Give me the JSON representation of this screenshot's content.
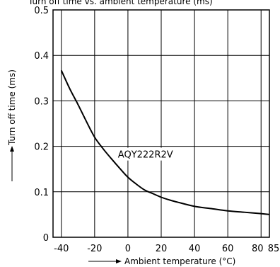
{
  "chart_data": {
    "type": "line",
    "title": "",
    "top_caption": "Turn off time vs. ambient temperature (ms)",
    "xlabel": "Ambient temperature (°C)",
    "ylabel": "Turn off time (ms)",
    "xlim": [
      -45,
      85
    ],
    "ylim": [
      0,
      0.5
    ],
    "x_ticks": [
      "-40",
      "-20",
      "0",
      "20",
      "40",
      "60",
      "80",
      "85"
    ],
    "y_ticks": [
      "0",
      "0.1",
      "0.2",
      "0.3",
      "0.4",
      "0.5"
    ],
    "grid": true,
    "series": [
      {
        "name": "AQY222R2V",
        "x": [
          -40,
          -35,
          -30,
          -25,
          -20,
          -15,
          -10,
          -5,
          0,
          5,
          10,
          15,
          20,
          25,
          30,
          40,
          50,
          60,
          70,
          80,
          85
        ],
        "y": [
          0.367,
          0.327,
          0.292,
          0.255,
          0.22,
          0.195,
          0.173,
          0.152,
          0.132,
          0.117,
          0.104,
          0.096,
          0.088,
          0.082,
          0.077,
          0.068,
          0.063,
          0.058,
          0.055,
          0.052,
          0.05
        ]
      }
    ],
    "annotations": [
      {
        "text": "AQY222R2V",
        "x": -6,
        "y": 0.175
      }
    ],
    "color": "#000000"
  }
}
